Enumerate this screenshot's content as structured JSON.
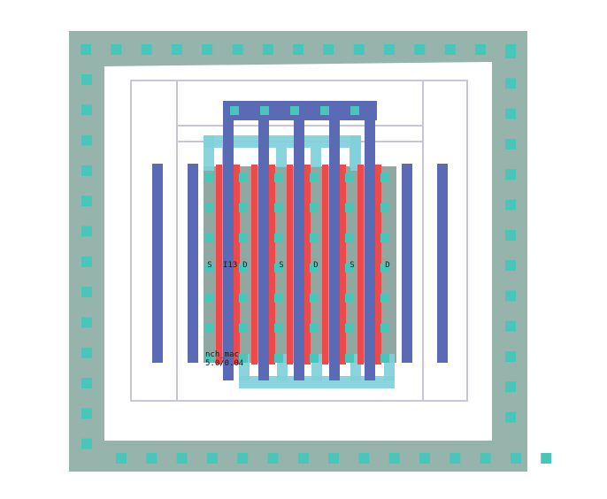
{
  "layout_viewer": {
    "device": {
      "model_label": "nch_mac",
      "size_label": "5.0/0.04",
      "instance_label": "I13"
    },
    "terminal_labels": [
      "S",
      "D",
      "S",
      "D",
      "S",
      "D"
    ],
    "layer_colors": {
      "guard_ring": "#97b4ac",
      "contact": "#49c6ba",
      "diffusion": "#8fa9a2",
      "poly": "#ef4a4a",
      "metal1": "#5a6ab5",
      "metal2": "#7fd0da",
      "boundary": "#c9c5d8"
    }
  }
}
